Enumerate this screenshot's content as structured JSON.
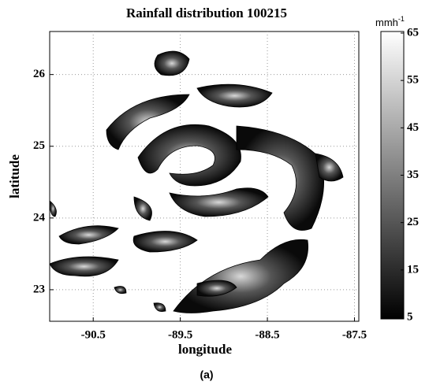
{
  "chart_data": {
    "type": "contour",
    "title": "Rainfall distribution 100215",
    "x_label": "longitude",
    "y_label": "latitude",
    "xlim": [
      -91.0,
      -87.45
    ],
    "xticks": [
      -90.5,
      -89.5,
      -88.5,
      -87.5
    ],
    "ylim": [
      22.56,
      26.6
    ],
    "yticks": [
      23,
      24,
      25,
      26
    ],
    "grid": true,
    "colorbar": {
      "unit": "mmh",
      "unit_exponent": "-1",
      "lim": [
        5,
        65
      ],
      "ticks": [
        5,
        15,
        25,
        35,
        45,
        55,
        65
      ],
      "colors": [
        "#000000",
        "#ffffff"
      ]
    },
    "caption": "(a)"
  }
}
